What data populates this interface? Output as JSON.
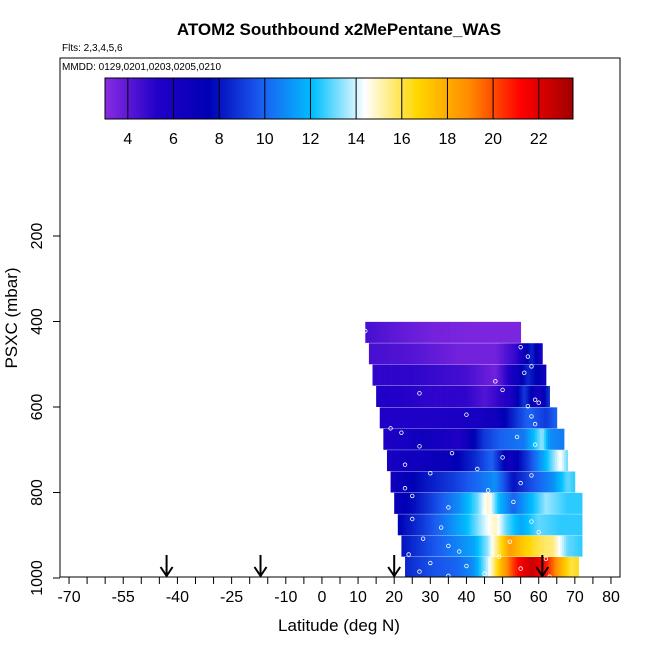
{
  "chart_data": {
    "type": "heatmap",
    "title": "ATOM2 Southbound x2MePentane_WAS",
    "flights_note": "Flts: 2,3,4,5,6",
    "dates_note": "MMDD: 0129,0201,0203,0205,0210",
    "xlabel": "Latitude (deg N)",
    "ylabel": "PSXC (mbar)",
    "xlim": [
      -70,
      80
    ],
    "ylim": [
      1000,
      0
    ],
    "x_ticks_labeled": [
      -70,
      -55,
      -40,
      -25,
      -10,
      0,
      10,
      20,
      30,
      40,
      50,
      60,
      70,
      80
    ],
    "x_ticks_minor_step": 5,
    "y_ticks": [
      200,
      400,
      600,
      800,
      1000
    ],
    "colorbar": {
      "range": [
        3.0,
        23.5
      ],
      "ticks": [
        4,
        6,
        8,
        10,
        12,
        14,
        16,
        18,
        20,
        22
      ],
      "colors": [
        "#8a2be2",
        "#2200c8",
        "#0000b4",
        "#1a5cf0",
        "#00bfff",
        "#ffffff",
        "#ffd700",
        "#ff8c00",
        "#ff0000",
        "#a00000"
      ]
    },
    "arrows_latitude": [
      -43,
      -17,
      20,
      61
    ],
    "rows": [
      {
        "p": 450,
        "lat_start": 12,
        "lat_end": 55,
        "stops": [
          [
            12,
            4.5
          ],
          [
            20,
            4.0
          ],
          [
            30,
            3.5
          ],
          [
            42,
            3.3
          ],
          [
            55,
            3.3
          ]
        ]
      },
      {
        "p": 500,
        "lat_start": 13,
        "lat_end": 61,
        "stops": [
          [
            13,
            4.5
          ],
          [
            25,
            4.2
          ],
          [
            38,
            3.5
          ],
          [
            48,
            3.5
          ],
          [
            54,
            5.0
          ],
          [
            58,
            8.5
          ],
          [
            61,
            6.0
          ]
        ]
      },
      {
        "p": 550,
        "lat_start": 14,
        "lat_end": 62,
        "stops": [
          [
            14,
            5.0
          ],
          [
            25,
            5.0
          ],
          [
            40,
            4.5
          ],
          [
            48,
            3.5
          ],
          [
            52,
            5.5
          ],
          [
            57,
            8.5
          ],
          [
            62,
            6.5
          ]
        ]
      },
      {
        "p": 600,
        "lat_start": 15,
        "lat_end": 63,
        "stops": [
          [
            15,
            5.5
          ],
          [
            30,
            5.0
          ],
          [
            40,
            5.0
          ],
          [
            45,
            4.2
          ],
          [
            52,
            5.5
          ],
          [
            56,
            9.0
          ],
          [
            60,
            6.0
          ],
          [
            63,
            9.0
          ]
        ]
      },
      {
        "p": 650,
        "lat_start": 16,
        "lat_end": 65,
        "stops": [
          [
            16,
            5.5
          ],
          [
            30,
            5.5
          ],
          [
            42,
            6.0
          ],
          [
            48,
            6.5
          ],
          [
            53,
            8.5
          ],
          [
            57,
            10.0
          ],
          [
            62,
            9.0
          ],
          [
            65,
            10.0
          ]
        ]
      },
      {
        "p": 700,
        "lat_start": 17,
        "lat_end": 67,
        "stops": [
          [
            17,
            5.5
          ],
          [
            28,
            6.5
          ],
          [
            38,
            5.5
          ],
          [
            45,
            9.0
          ],
          [
            50,
            10.0
          ],
          [
            56,
            10.5
          ],
          [
            61,
            13.5
          ],
          [
            63,
            11.0
          ],
          [
            67,
            10.5
          ]
        ]
      },
      {
        "p": 750,
        "lat_start": 18,
        "lat_end": 68,
        "stops": [
          [
            18,
            6.0
          ],
          [
            25,
            6.5
          ],
          [
            35,
            7.0
          ],
          [
            42,
            8.5
          ],
          [
            47,
            10.0
          ],
          [
            52,
            6.5
          ],
          [
            57,
            9.0
          ],
          [
            62,
            12.0
          ],
          [
            66,
            14.5
          ],
          [
            68,
            13.0
          ]
        ]
      },
      {
        "p": 800,
        "lat_start": 19,
        "lat_end": 70,
        "stops": [
          [
            19,
            6.5
          ],
          [
            28,
            8.0
          ],
          [
            36,
            9.0
          ],
          [
            42,
            10.0
          ],
          [
            48,
            11.0
          ],
          [
            53,
            8.0
          ],
          [
            58,
            9.5
          ],
          [
            64,
            11.0
          ],
          [
            68,
            13.0
          ],
          [
            70,
            12.5
          ]
        ]
      },
      {
        "p": 850,
        "lat_start": 20,
        "lat_end": 72,
        "stops": [
          [
            20,
            7.0
          ],
          [
            26,
            8.0
          ],
          [
            32,
            9.5
          ],
          [
            38,
            11.0
          ],
          [
            43,
            13.0
          ],
          [
            46,
            15.0
          ],
          [
            49,
            12.0
          ],
          [
            53,
            10.0
          ],
          [
            58,
            12.0
          ],
          [
            62,
            13.5
          ],
          [
            68,
            12.5
          ],
          [
            72,
            12.5
          ]
        ]
      },
      {
        "p": 900,
        "lat_start": 21,
        "lat_end": 72,
        "stops": [
          [
            21,
            7.5
          ],
          [
            28,
            9.0
          ],
          [
            34,
            10.5
          ],
          [
            40,
            12.0
          ],
          [
            45,
            14.0
          ],
          [
            48,
            15.0
          ],
          [
            51,
            13.0
          ],
          [
            55,
            11.5
          ],
          [
            60,
            13.0
          ],
          [
            66,
            12.5
          ],
          [
            72,
            12.5
          ]
        ]
      },
      {
        "p": 950,
        "lat_start": 22,
        "lat_end": 72,
        "stops": [
          [
            22,
            8.0
          ],
          [
            30,
            9.5
          ],
          [
            36,
            10.5
          ],
          [
            42,
            11.5
          ],
          [
            46,
            13.5
          ],
          [
            49,
            16.0
          ],
          [
            52,
            18.5
          ],
          [
            56,
            17.0
          ],
          [
            60,
            16.0
          ],
          [
            64,
            15.5
          ],
          [
            68,
            13.0
          ],
          [
            72,
            12.5
          ]
        ]
      },
      {
        "p": 1000,
        "lat_start": 23,
        "lat_end": 71,
        "stops": [
          [
            23,
            8.5
          ],
          [
            30,
            9.5
          ],
          [
            37,
            10.0
          ],
          [
            42,
            11.0
          ],
          [
            46,
            14.0
          ],
          [
            50,
            18.0
          ],
          [
            54,
            21.0
          ],
          [
            58,
            22.5
          ],
          [
            62,
            21.0
          ],
          [
            66,
            18.0
          ],
          [
            69,
            16.0
          ],
          [
            71,
            16.5
          ]
        ]
      }
    ],
    "sample_points": [
      [
        12,
        422
      ],
      [
        55,
        460
      ],
      [
        57,
        482
      ],
      [
        58,
        505
      ],
      [
        56,
        520
      ],
      [
        48,
        540
      ],
      [
        50,
        560
      ],
      [
        27,
        568
      ],
      [
        59,
        583
      ],
      [
        60,
        590
      ],
      [
        57,
        598
      ],
      [
        40,
        618
      ],
      [
        58,
        622
      ],
      [
        59,
        640
      ],
      [
        19,
        650
      ],
      [
        22,
        660
      ],
      [
        54,
        670
      ],
      [
        59,
        688
      ],
      [
        27,
        692
      ],
      [
        36,
        708
      ],
      [
        50,
        718
      ],
      [
        23,
        735
      ],
      [
        43,
        745
      ],
      [
        30,
        755
      ],
      [
        58,
        760
      ],
      [
        55,
        778
      ],
      [
        23,
        790
      ],
      [
        46,
        795
      ],
      [
        25,
        808
      ],
      [
        53,
        822
      ],
      [
        35,
        835
      ],
      [
        45,
        848
      ],
      [
        25,
        862
      ],
      [
        58,
        868
      ],
      [
        33,
        882
      ],
      [
        60,
        893
      ],
      [
        28,
        908
      ],
      [
        52,
        915
      ],
      [
        35,
        925
      ],
      [
        38,
        938
      ],
      [
        24,
        945
      ],
      [
        49,
        950
      ],
      [
        62,
        955
      ],
      [
        30,
        965
      ],
      [
        40,
        972
      ],
      [
        55,
        978
      ],
      [
        27,
        985
      ],
      [
        45,
        990
      ],
      [
        35,
        995
      ],
      [
        63,
        997
      ]
    ]
  }
}
